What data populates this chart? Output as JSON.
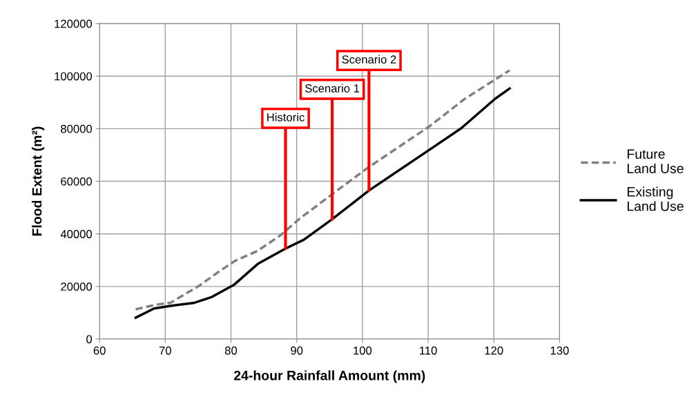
{
  "chart_data": {
    "type": "line",
    "xlabel": "24-hour Rainfall Amount (mm)",
    "ylabel": "Flood Extent (m²)",
    "xlim": [
      60,
      130
    ],
    "xticks": [
      60,
      70,
      80,
      90,
      100,
      110,
      120,
      130
    ],
    "ylim": [
      0,
      120000
    ],
    "yticks": [
      0,
      20000,
      40000,
      60000,
      80000,
      100000,
      120000
    ],
    "grid": true,
    "legend": "right",
    "series": [
      {
        "name": "Future Land Use",
        "color": "#808080",
        "line_style": "dashed",
        "x": [
          65.5,
          68.7,
          70.8,
          75,
          78.2,
          80.6,
          84.1,
          87.6,
          90.4,
          95.3,
          100.8,
          110.2,
          115.6,
          122.4
        ],
        "values": [
          11300,
          13100,
          13800,
          20000,
          25700,
          29700,
          33600,
          39600,
          45700,
          54900,
          65100,
          80900,
          91400,
          102200
        ]
      },
      {
        "name": "Existing Land Use",
        "color": "#000000",
        "line_style": "solid",
        "x": [
          65.5,
          68.3,
          70.8,
          74.3,
          77.1,
          80.5,
          84.1,
          88.3,
          91.1,
          95.3,
          101,
          110.2,
          115,
          120.2,
          122.4
        ],
        "values": [
          8100,
          11600,
          12600,
          13700,
          16000,
          20700,
          28600,
          34400,
          37800,
          45400,
          56500,
          72000,
          80100,
          91400,
          95300
        ]
      }
    ],
    "annotations": [
      {
        "text": "Historic",
        "x": 88.3,
        "y": 34500
      },
      {
        "text": "Scenario 1",
        "x": 95.4,
        "y": 45500
      },
      {
        "text": "Scenario 2",
        "x": 101,
        "y": 56500
      }
    ]
  }
}
